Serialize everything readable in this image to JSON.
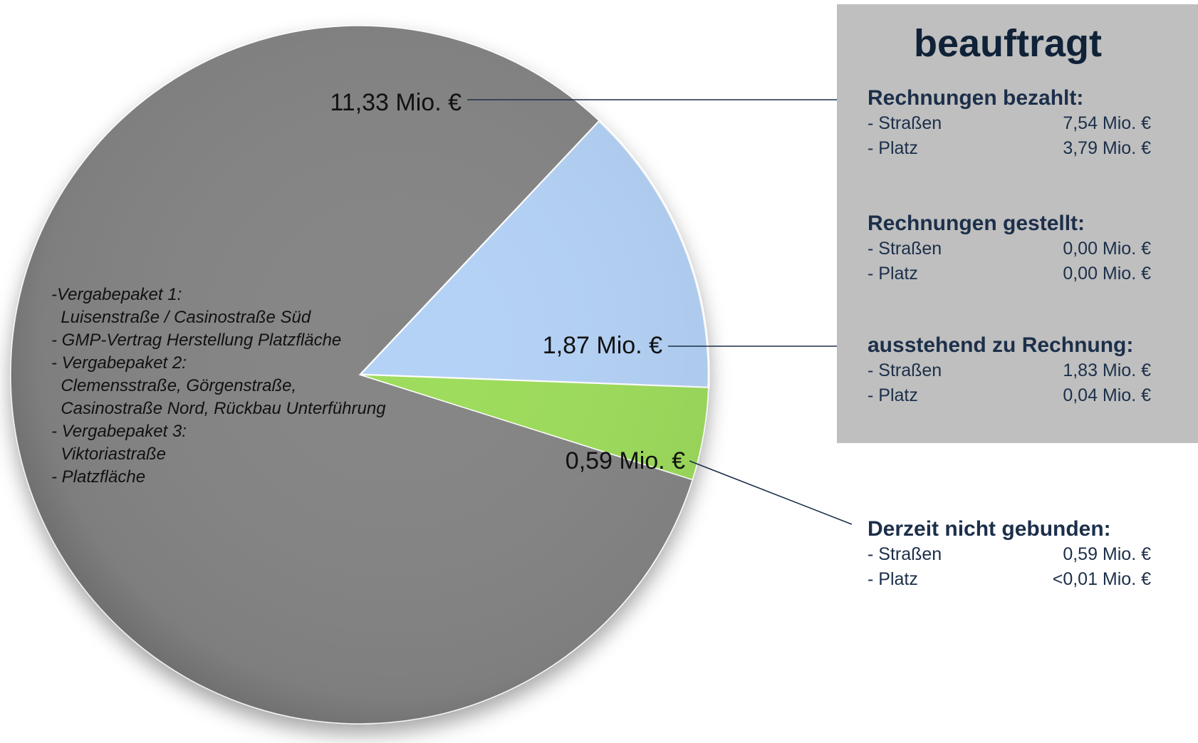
{
  "chart_data": {
    "type": "pie",
    "units": "Mio. €",
    "slices": [
      {
        "name": "",
        "value": 11.33,
        "label": "11,33 Mio. €",
        "color": "#858585"
      },
      {
        "name": "",
        "value": 1.87,
        "label": "1,87 Mio. €",
        "color": "#b4d2f6"
      },
      {
        "name": "",
        "value": 0.59,
        "label": "0,59 Mio. €",
        "color": "#9ddc5c"
      }
    ],
    "pie_note": [
      "-Vergabepaket 1:",
      "  Luisenstraße / Casinostraße Süd",
      "- GMP-Vertrag Herstellung Platzfläche",
      "- Vergabepaket 2:",
      "  Clemensstraße, Görgenstraße,",
      "  Casinostraße Nord, Rückbau Unterführung",
      "- Vergabepaket 3:",
      "  Viktoriastraße",
      "- Platzfläche"
    ]
  },
  "panel": {
    "title": "beauftragt",
    "background": "#bfbfbf",
    "groups": [
      {
        "heading": "Rechnungen bezahlt:",
        "rows": [
          {
            "label": "- Straßen",
            "value": "7,54 Mio. €"
          },
          {
            "label": "- Platz",
            "value": "3,79 Mio. €"
          }
        ]
      },
      {
        "heading": "Rechnungen gestellt:",
        "rows": [
          {
            "label": "- Straßen",
            "value": "0,00 Mio. €"
          },
          {
            "label": "- Platz",
            "value": "0,00 Mio. €"
          }
        ]
      },
      {
        "heading": "ausstehend zu Rechnung:",
        "rows": [
          {
            "label": "- Straßen",
            "value": "1,83 Mio. €"
          },
          {
            "label": "- Platz",
            "value": "0,04 Mio. €"
          }
        ]
      }
    ]
  },
  "unbound": {
    "heading": "Derzeit nicht gebunden:",
    "rows": [
      {
        "label": "- Straßen",
        "value": "0,59 Mio. €"
      },
      {
        "label": "- Platz",
        "value": "<0,01 Mio. €"
      }
    ]
  }
}
